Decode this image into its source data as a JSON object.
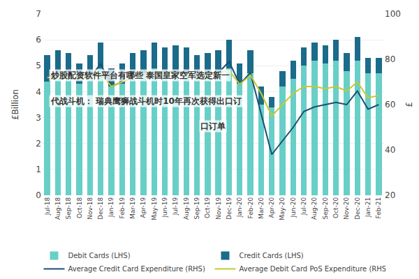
{
  "chart_data": {
    "type": "bar",
    "stacked": true,
    "categories": [
      "Jul-18",
      "Aug-18",
      "Sep-18",
      "Oct-18",
      "Nov-18",
      "Dec-18",
      "Jan-19",
      "Feb-19",
      "Mar-19",
      "Apr-19",
      "May-19",
      "Jun-19",
      "Jul-19",
      "Aug-19",
      "Sep-19",
      "Oct-19",
      "Nov-19",
      "Dec-19",
      "Jan-20",
      "Feb-20",
      "Mar-20",
      "Apr-20",
      "May-20",
      "Jun-20",
      "Jul-20",
      "Aug-20",
      "Sep-20",
      "Oct-20",
      "Nov-20",
      "Dec-20",
      "Jan-21",
      "Feb-21"
    ],
    "series": [
      {
        "name": "Debit Cards (LHS)",
        "type": "bar",
        "color": "#68cfc8",
        "values": [
          4.4,
          4.7,
          4.6,
          4.3,
          4.5,
          4.9,
          4.2,
          4.3,
          4.6,
          4.7,
          4.9,
          4.7,
          4.8,
          4.7,
          4.5,
          4.6,
          4.7,
          4.9,
          4.3,
          4.7,
          3.5,
          3.4,
          4.2,
          4.5,
          5.0,
          5.2,
          5.1,
          5.2,
          4.8,
          5.2,
          4.7,
          4.7
        ]
      },
      {
        "name": "Credit Cards (LHS)",
        "type": "bar",
        "color": "#1b6b8a",
        "values": [
          1.0,
          0.9,
          0.9,
          0.8,
          0.9,
          1.0,
          0.7,
          0.8,
          0.9,
          0.9,
          1.0,
          1.0,
          1.0,
          1.0,
          0.9,
          0.9,
          0.9,
          1.1,
          0.8,
          0.9,
          0.7,
          0.4,
          0.6,
          0.7,
          0.7,
          0.7,
          0.7,
          0.8,
          0.7,
          0.9,
          0.6,
          0.6
        ]
      },
      {
        "name": "Average Credit Card Expenditure (RHS)",
        "type": "line",
        "axis": "y2",
        "color": "#1b4f72",
        "values": [
          72,
          73,
          72,
          71,
          72,
          78,
          68,
          70,
          72,
          73,
          74,
          74,
          75,
          74,
          72,
          74,
          74,
          79,
          69,
          74,
          56,
          38,
          44,
          50,
          57,
          59,
          60,
          61,
          60,
          66,
          58,
          60
        ]
      },
      {
        "name": "Average Debit Card PoS Expenditure (RHS)",
        "type": "line",
        "axis": "y2",
        "color": "#c8c832",
        "values": [
          72,
          72,
          72,
          71,
          72,
          74,
          68,
          70,
          72,
          73,
          74,
          74,
          74,
          74,
          72,
          73,
          74,
          75,
          69,
          73,
          65,
          55,
          60,
          65,
          68,
          68,
          67,
          68,
          66,
          70,
          63,
          64
        ]
      }
    ],
    "ylabel": "£Billion",
    "y2label": "£",
    "ylim": [
      0,
      7
    ],
    "yticks": [
      0,
      1,
      2,
      3,
      4,
      5,
      6,
      7
    ],
    "y2lim": [
      20,
      100
    ],
    "y2ticks": [
      20,
      40,
      60,
      80,
      100
    ],
    "grid": true,
    "legend": "bottom",
    "annotations": [
      "炒股配资软件平台有哪些 泰国皇家空军选定新一",
      "代战斗机： 瑞典鹰狮战斗机时10年再次获得出口订",
      "口订单"
    ]
  }
}
